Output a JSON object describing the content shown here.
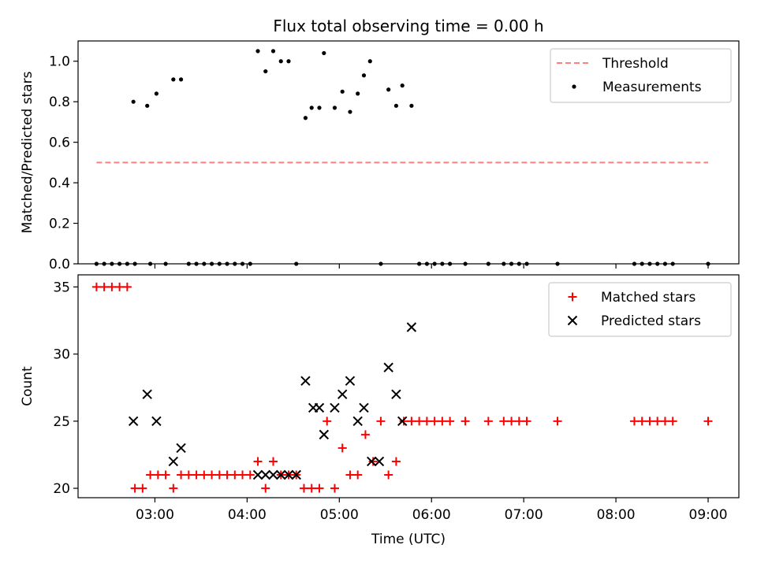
{
  "chart_data": [
    {
      "type": "scatter",
      "title": "Flux total observing time = 0.00 h",
      "xlabel": "",
      "ylabel": "Matched/Predicted stars",
      "xlim": [
        "02:10",
        "09:20"
      ],
      "ylim": [
        0.0,
        1.1
      ],
      "yticks": [
        0.0,
        0.2,
        0.4,
        0.6,
        0.8,
        1.0
      ],
      "ytick_labels": [
        "0.0",
        "0.2",
        "0.4",
        "0.6",
        "0.8",
        "1.0"
      ],
      "xticks": [
        "03:00",
        "04:00",
        "05:00",
        "06:00",
        "07:00",
        "08:00",
        "09:00"
      ],
      "show_xtick_labels": false,
      "grid": false,
      "legend_position": "top-right",
      "series": [
        {
          "name": "Threshold",
          "kind": "line",
          "style": "dashed",
          "color": "#ff7f7f",
          "x": [
            "02:22",
            "09:00"
          ],
          "y": [
            0.5,
            0.5
          ]
        },
        {
          "name": "Measurements",
          "kind": "scatter",
          "marker": "dot",
          "color": "#000000",
          "x": [
            "02:22",
            "02:27",
            "02:32",
            "02:37",
            "02:42",
            "02:47",
            "02:57",
            "03:07",
            "03:22",
            "03:27",
            "03:32",
            "03:37",
            "03:42",
            "03:47",
            "03:52",
            "03:57",
            "04:02",
            "04:32",
            "05:27",
            "05:52",
            "05:57",
            "06:02",
            "06:07",
            "06:12",
            "06:22",
            "06:37",
            "06:47",
            "06:52",
            "06:57",
            "07:02",
            "07:22",
            "08:12",
            "08:17",
            "08:22",
            "08:27",
            "08:32",
            "08:37",
            "09:00",
            "02:46",
            "02:55",
            "03:01",
            "03:12",
            "03:17",
            "04:07",
            "04:12",
            "04:17",
            "04:22",
            "04:27",
            "04:38",
            "04:42",
            "04:47",
            "04:50",
            "04:57",
            "05:02",
            "05:07",
            "05:12",
            "05:16",
            "05:20",
            "05:32",
            "05:37",
            "05:41",
            "05:47"
          ],
          "y": [
            0,
            0,
            0,
            0,
            0,
            0,
            0,
            0,
            0,
            0,
            0,
            0,
            0,
            0,
            0,
            0,
            0,
            0,
            0,
            0,
            0,
            0,
            0,
            0,
            0,
            0,
            0,
            0,
            0,
            0,
            0,
            0,
            0,
            0,
            0,
            0,
            0,
            0,
            0.8,
            0.78,
            0.84,
            0.91,
            0.91,
            1.05,
            0.95,
            1.05,
            1.0,
            1.0,
            0.72,
            0.77,
            0.77,
            1.04,
            0.77,
            0.85,
            0.75,
            0.84,
            0.93,
            1.0,
            0.86,
            0.78,
            0.88,
            0.78
          ]
        }
      ]
    },
    {
      "type": "scatter",
      "title": "",
      "xlabel": "Time (UTC)",
      "ylabel": "Count",
      "xlim": [
        "02:10",
        "09:20"
      ],
      "ylim": [
        19.3,
        35.9
      ],
      "yticks": [
        20,
        25,
        30,
        35
      ],
      "ytick_labels": [
        "20",
        "25",
        "30",
        "35"
      ],
      "xticks": [
        "03:00",
        "04:00",
        "05:00",
        "06:00",
        "07:00",
        "08:00",
        "09:00"
      ],
      "xtick_labels": [
        "03:00",
        "04:00",
        "05:00",
        "06:00",
        "07:00",
        "08:00",
        "09:00"
      ],
      "grid": false,
      "legend_position": "top-right",
      "series": [
        {
          "name": "Matched stars",
          "kind": "scatter",
          "marker": "plus",
          "color": "#ff0000",
          "x": [
            "02:22",
            "02:27",
            "02:32",
            "02:37",
            "02:42",
            "02:47",
            "02:52",
            "02:57",
            "03:02",
            "03:07",
            "03:12",
            "03:17",
            "03:22",
            "03:27",
            "03:32",
            "03:37",
            "03:42",
            "03:47",
            "03:52",
            "03:57",
            "04:02",
            "04:07",
            "04:12",
            "04:17",
            "04:22",
            "04:27",
            "04:32",
            "04:37",
            "04:42",
            "04:47",
            "04:52",
            "04:57",
            "05:02",
            "05:07",
            "05:12",
            "05:17",
            "05:22",
            "05:27",
            "05:32",
            "05:37",
            "05:42",
            "05:47",
            "05:52",
            "05:57",
            "06:02",
            "06:07",
            "06:12",
            "06:22",
            "06:37",
            "06:47",
            "06:52",
            "06:57",
            "07:02",
            "07:22",
            "08:12",
            "08:17",
            "08:22",
            "08:27",
            "08:32",
            "08:37",
            "09:00"
          ],
          "y": [
            35,
            35,
            35,
            35,
            35,
            20,
            20,
            21,
            21,
            21,
            20,
            21,
            21,
            21,
            21,
            21,
            21,
            21,
            21,
            21,
            21,
            22,
            20,
            22,
            21,
            21,
            21,
            20,
            20,
            20,
            25,
            20,
            23,
            21,
            21,
            24,
            22,
            25,
            21,
            22,
            25,
            25,
            25,
            25,
            25,
            25,
            25,
            25,
            25,
            25,
            25,
            25,
            25,
            25,
            25,
            25,
            25,
            25,
            25,
            25,
            25
          ]
        },
        {
          "name": "Predicted stars",
          "kind": "scatter",
          "marker": "x",
          "color": "#000000",
          "x": [
            "02:46",
            "02:55",
            "03:01",
            "03:12",
            "03:17",
            "04:07",
            "04:12",
            "04:17",
            "04:22",
            "04:27",
            "04:32",
            "04:38",
            "04:43",
            "04:47",
            "04:50",
            "04:57",
            "05:02",
            "05:07",
            "05:12",
            "05:16",
            "05:21",
            "05:26",
            "05:32",
            "05:37",
            "05:41",
            "05:47"
          ],
          "y": [
            25,
            27,
            25,
            22,
            23,
            21,
            21,
            21,
            21,
            21,
            21,
            28,
            26,
            26,
            24,
            26,
            27,
            28,
            25,
            26,
            22,
            22,
            29,
            27,
            25,
            32
          ]
        }
      ]
    }
  ]
}
